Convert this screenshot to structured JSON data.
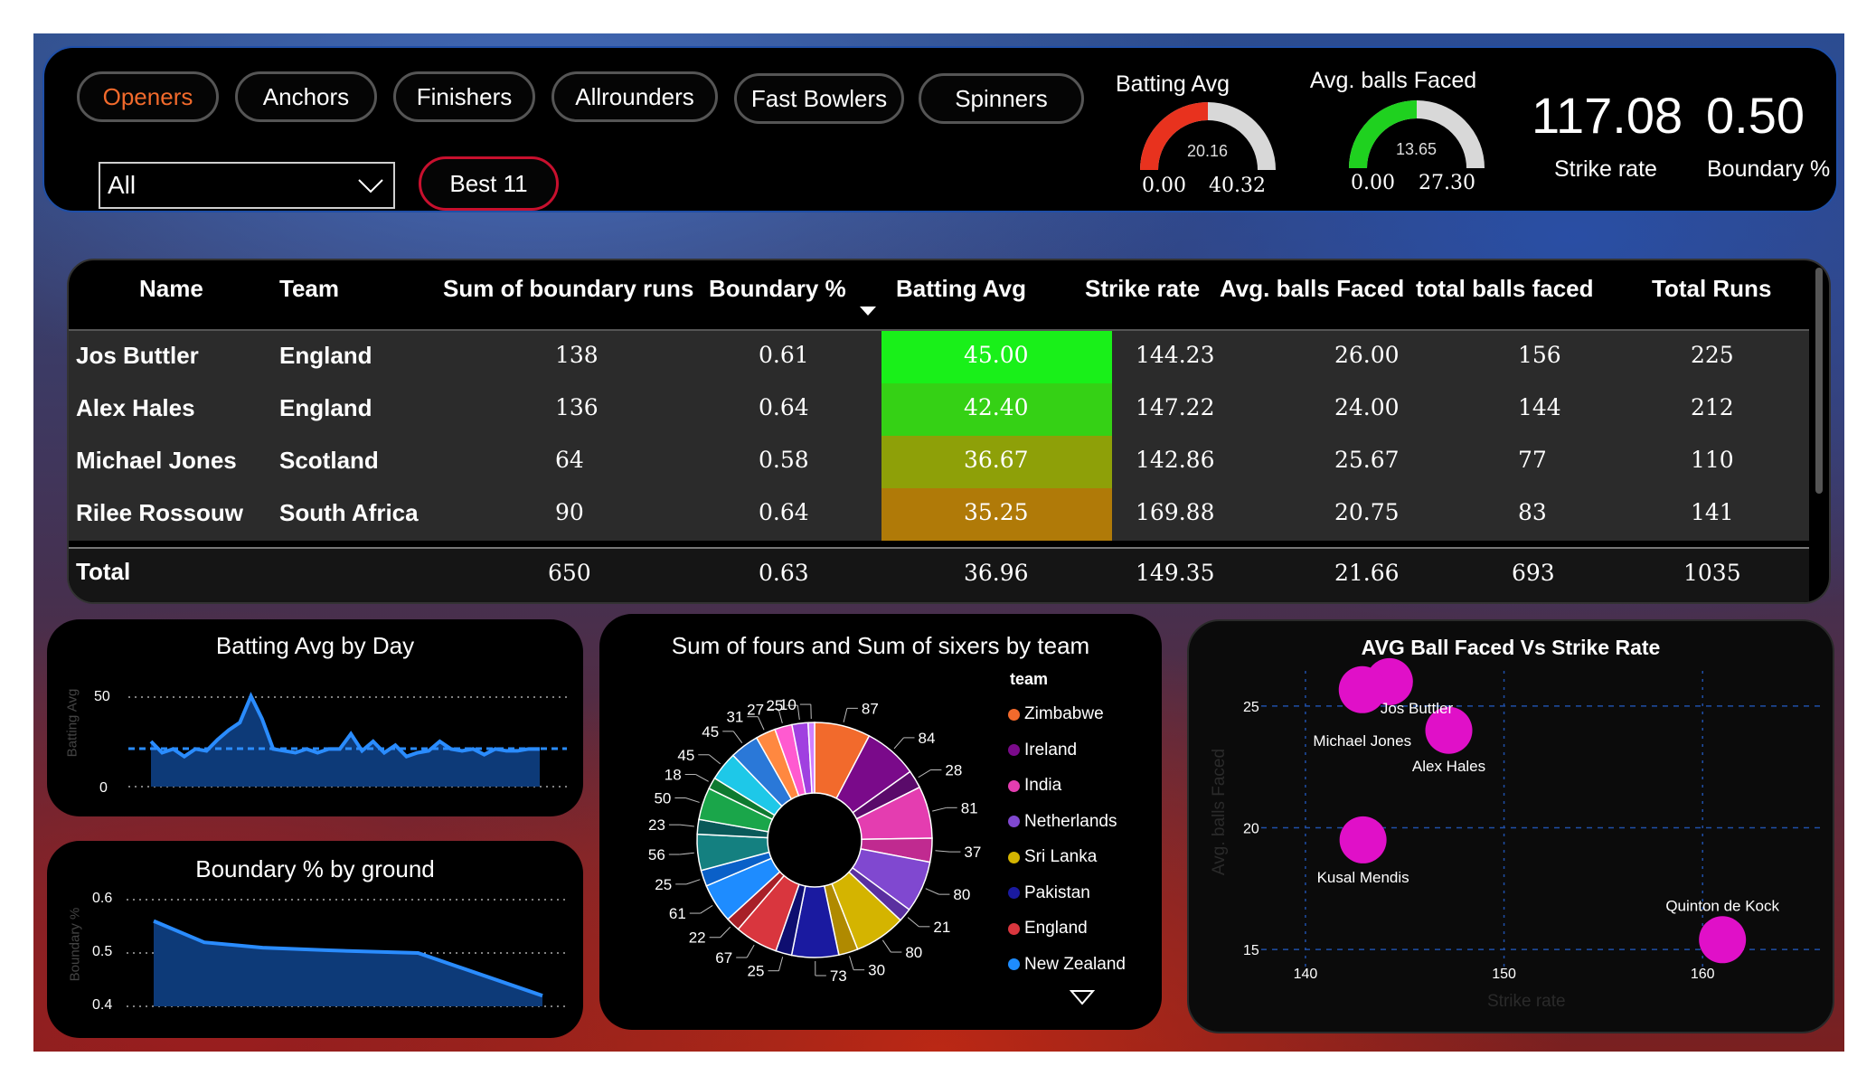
{
  "filters": {
    "tabs": [
      {
        "label": "Openers",
        "active": true
      },
      {
        "label": "Anchors",
        "active": false
      },
      {
        "label": "Finishers",
        "active": false
      },
      {
        "label": "Allrounders",
        "active": false
      },
      {
        "label": "Fast Bowlers",
        "active": false
      },
      {
        "label": "Spinners",
        "active": false
      }
    ],
    "dropdown_value": "All",
    "best11_label": "Best 11"
  },
  "gauges": [
    {
      "title": "Batting Avg",
      "value": "20.16",
      "min": "0.00",
      "max": "40.32",
      "fraction": 0.5,
      "color": "#e8321e"
    },
    {
      "title": "Avg. balls Faced",
      "value": "13.65",
      "min": "0.00",
      "max": "27.30",
      "fraction": 0.5,
      "color": "#1fd11f"
    }
  ],
  "kpis": [
    {
      "value": "117.08",
      "label": "Strike rate"
    },
    {
      "value": "0.50",
      "label": "Boundary %"
    }
  ],
  "table": {
    "headers": [
      "Name",
      "Team",
      "Sum of boundary runs",
      "Boundary %",
      "Batting Avg",
      "Strike rate",
      "Avg. balls Faced",
      "total balls faced",
      "Total Runs"
    ],
    "rows": [
      {
        "name": "Jos Buttler",
        "team": "England",
        "boundary_runs": "138",
        "boundary_pct": "0.61",
        "batting_avg": "45.00",
        "strike_rate": "144.23",
        "avg_balls": "26.00",
        "total_balls": "156",
        "total_runs": "225",
        "avg_color": "#19f019"
      },
      {
        "name": "Alex Hales",
        "team": "England",
        "boundary_runs": "136",
        "boundary_pct": "0.64",
        "batting_avg": "42.40",
        "strike_rate": "147.22",
        "avg_balls": "24.00",
        "total_balls": "144",
        "total_runs": "212",
        "avg_color": "#35d115"
      },
      {
        "name": "Michael Jones",
        "team": "Scotland",
        "boundary_runs": "64",
        "boundary_pct": "0.58",
        "batting_avg": "36.67",
        "strike_rate": "142.86",
        "avg_balls": "25.67",
        "total_balls": "77",
        "total_runs": "110",
        "avg_color": "#8ea008"
      },
      {
        "name": "Rilee Rossouw",
        "team": "South Africa",
        "boundary_runs": "90",
        "boundary_pct": "0.64",
        "batting_avg": "35.25",
        "strike_rate": "169.88",
        "avg_balls": "20.75",
        "total_balls": "83",
        "total_runs": "141",
        "avg_color": "#b07a08"
      }
    ],
    "total": {
      "label": "Total",
      "boundary_runs": "650",
      "boundary_pct": "0.63",
      "batting_avg": "36.96",
      "strike_rate": "149.35",
      "avg_balls": "21.66",
      "total_balls": "693",
      "total_runs": "1035"
    }
  },
  "chart_data": [
    {
      "type": "area",
      "title": "Batting Avg by Day",
      "ylabel": "Batting Avg",
      "ylim": [
        0,
        60
      ],
      "y_ticks": [
        "50",
        "0"
      ],
      "average_line": 20.16,
      "values": [
        24,
        18,
        20,
        16,
        20,
        19,
        25,
        30,
        34,
        48,
        36,
        20,
        19,
        18,
        20,
        18,
        20,
        20,
        28,
        19,
        24,
        18,
        22,
        16,
        18,
        19,
        24,
        20,
        19,
        20,
        17,
        20,
        19,
        19,
        20,
        20
      ]
    },
    {
      "type": "area",
      "title": "Boundary % by ground",
      "ylabel": "Boundary %",
      "ylim": [
        0.4,
        0.6
      ],
      "y_ticks": [
        "0.6",
        "0.5",
        "0.4"
      ],
      "values": [
        0.56,
        0.52,
        0.51,
        0.505,
        0.5,
        0.42
      ]
    },
    {
      "type": "pie",
      "title": "Sum of fours and Sum of sixers by team",
      "legend_title": "team",
      "legend": [
        {
          "name": "Zimbabwe",
          "color": "#f26a2c"
        },
        {
          "name": "Ireland",
          "color": "#7a0a8a"
        },
        {
          "name": "India",
          "color": "#e43db0"
        },
        {
          "name": "Netherlands",
          "color": "#8048d0"
        },
        {
          "name": "Sri Lanka",
          "color": "#d4b400"
        },
        {
          "name": "Pakistan",
          "color": "#1a1aa0"
        },
        {
          "name": "England",
          "color": "#d9363e"
        },
        {
          "name": "New Zealand",
          "color": "#1e8cff"
        }
      ],
      "slices": [
        {
          "value": 87,
          "color": "#f26a2c"
        },
        {
          "value": 84,
          "color": "#7a0a8a"
        },
        {
          "value": 28,
          "color": "#5a0a6a"
        },
        {
          "value": 81,
          "color": "#e43db0"
        },
        {
          "value": 37,
          "color": "#c02a90"
        },
        {
          "value": 80,
          "color": "#8048d0"
        },
        {
          "value": 21,
          "color": "#5a30a0"
        },
        {
          "value": 80,
          "color": "#d4b400"
        },
        {
          "value": 30,
          "color": "#b08a00"
        },
        {
          "value": 73,
          "color": "#1a1aa0"
        },
        {
          "value": 25,
          "color": "#0e0e70"
        },
        {
          "value": 67,
          "color": "#d9363e"
        },
        {
          "value": 22,
          "color": "#a82028"
        },
        {
          "value": 61,
          "color": "#1e8cff"
        },
        {
          "value": 25,
          "color": "#0a60c8"
        },
        {
          "value": 56,
          "color": "#148080"
        },
        {
          "value": 23,
          "color": "#0a5a5a"
        },
        {
          "value": 50,
          "color": "#1aa64a"
        },
        {
          "value": 18,
          "color": "#0e7a30"
        },
        {
          "value": 45,
          "color": "#1ec8e8"
        },
        {
          "value": 45,
          "color": "#2a78d8"
        },
        {
          "value": 31,
          "color": "#ff8840"
        },
        {
          "value": 27,
          "color": "#ff5ad0"
        },
        {
          "value": 25,
          "color": "#a040e0"
        },
        {
          "value": 10,
          "color": "#d080ff"
        }
      ]
    },
    {
      "type": "scatter",
      "title": "AVG Ball Faced Vs Strike Rate",
      "xlabel": "Strike rate",
      "ylabel": "Avg. balls Faced",
      "xlim": [
        138,
        166
      ],
      "ylim": [
        14,
        27
      ],
      "x_ticks": [
        140,
        150,
        160
      ],
      "y_ticks": [
        15,
        20,
        25
      ],
      "x_tick_labels": [
        "140",
        "150",
        "160"
      ],
      "y_tick_labels": [
        "15",
        "20",
        "25"
      ],
      "points": [
        {
          "label": "Jos Buttler",
          "x": 144.23,
          "y": 26.0
        },
        {
          "label": "Michael Jones",
          "x": 142.86,
          "y": 25.67
        },
        {
          "label": "Alex Hales",
          "x": 147.22,
          "y": 24.0
        },
        {
          "label": "Kusal Mendis",
          "x": 142.9,
          "y": 19.5
        },
        {
          "label": "Quinton de Kock",
          "x": 161.0,
          "y": 15.4
        }
      ]
    }
  ]
}
